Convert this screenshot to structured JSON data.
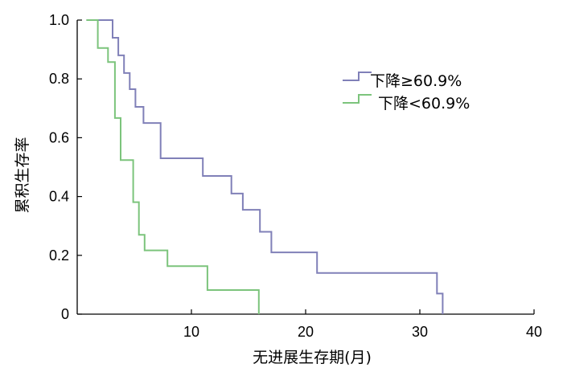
{
  "chart_data": {
    "type": "line",
    "step": true,
    "xlabel": "无进展生存期(月)",
    "ylabel": "累积生存率",
    "xlim": [
      0,
      40
    ],
    "ylim": [
      0,
      1.0
    ],
    "x_ticks": [
      10,
      20,
      30,
      40
    ],
    "x_tick_labels": [
      "10",
      "20",
      "30",
      "40"
    ],
    "y_ticks": [
      0,
      0.2,
      0.4,
      0.6,
      0.8,
      1.0
    ],
    "y_tick_labels": [
      "0",
      "0.2",
      "0.4",
      "0.6",
      "0.8",
      "1.0"
    ],
    "grid": false,
    "legend_position": "upper-right",
    "series": [
      {
        "name": "下降≥60.9%",
        "color": "#8080b8",
        "points": [
          [
            0.8,
            1.0
          ],
          [
            3.1,
            1.0
          ],
          [
            3.1,
            0.94
          ],
          [
            3.6,
            0.94
          ],
          [
            3.6,
            0.88
          ],
          [
            4.1,
            0.88
          ],
          [
            4.1,
            0.82
          ],
          [
            4.6,
            0.82
          ],
          [
            4.6,
            0.765
          ],
          [
            5.1,
            0.765
          ],
          [
            5.1,
            0.705
          ],
          [
            5.8,
            0.705
          ],
          [
            5.8,
            0.65
          ],
          [
            7.3,
            0.65
          ],
          [
            7.3,
            0.53
          ],
          [
            11.0,
            0.53
          ],
          [
            11.0,
            0.47
          ],
          [
            13.5,
            0.47
          ],
          [
            13.5,
            0.41
          ],
          [
            14.5,
            0.41
          ],
          [
            14.5,
            0.355
          ],
          [
            16.0,
            0.355
          ],
          [
            16.0,
            0.28
          ],
          [
            17.0,
            0.28
          ],
          [
            17.0,
            0.21
          ],
          [
            21.0,
            0.21
          ],
          [
            21.0,
            0.14
          ],
          [
            31.5,
            0.14
          ],
          [
            31.5,
            0.07
          ],
          [
            32.0,
            0.07
          ],
          [
            32.0,
            0.0
          ]
        ]
      },
      {
        "name": "下降<60.9%",
        "color": "#7cc47c",
        "points": [
          [
            0.8,
            1.0
          ],
          [
            1.8,
            1.0
          ],
          [
            1.8,
            0.905
          ],
          [
            2.7,
            0.905
          ],
          [
            2.7,
            0.857
          ],
          [
            3.3,
            0.857
          ],
          [
            3.3,
            0.667
          ],
          [
            3.8,
            0.667
          ],
          [
            3.8,
            0.524
          ],
          [
            4.9,
            0.524
          ],
          [
            4.9,
            0.381
          ],
          [
            5.4,
            0.381
          ],
          [
            5.4,
            0.27
          ],
          [
            5.9,
            0.27
          ],
          [
            5.9,
            0.217
          ],
          [
            7.9,
            0.217
          ],
          [
            7.9,
            0.163
          ],
          [
            11.4,
            0.163
          ],
          [
            11.4,
            0.082
          ],
          [
            15.9,
            0.082
          ],
          [
            15.9,
            0.0
          ]
        ]
      }
    ]
  }
}
